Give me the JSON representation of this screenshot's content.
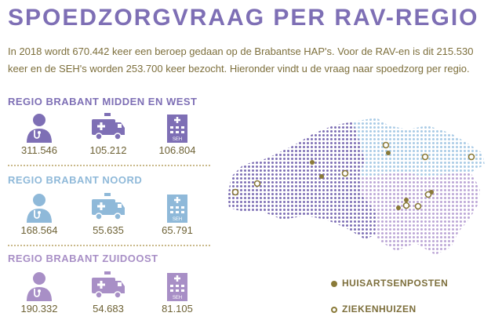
{
  "title": "SPOEDZORGVRAAG PER RAV-REGIO",
  "intro": "In 2018 wordt 670.442 keer een beroep gedaan op de Brabantse HAP's. Voor de RAV-en is dit 215.530 keer en de SEH's worden 253.700 keer bezocht. Hieronder vindt u de vraag naar spoedzorg per regio.",
  "regions": [
    {
      "name": "REGIO BRABANT MIDDEN EN WEST",
      "color": "#7e6fb5",
      "hap": "311.546",
      "rav": "105.212",
      "seh": "106.804"
    },
    {
      "name": "REGIO BRABANT NOORD",
      "color": "#8fb9d9",
      "hap": "168.564",
      "rav": "55.635",
      "seh": "65.791"
    },
    {
      "name": "REGIO BRABANT ZUIDOOST",
      "color": "#a88fc6",
      "hap": "190.332",
      "rav": "54.683",
      "seh": "81.105"
    }
  ],
  "icons": [
    "doctor-icon",
    "ambulance-icon",
    "hospital-icon"
  ],
  "hospital_label": "SEH",
  "legend": {
    "huisartsenposten": "HUISARTSENPOSTEN",
    "ziekenhuizen": "ZIEKENHUIZEN"
  },
  "colors": {
    "title": "#7e6fb5",
    "text": "#7d6f3c",
    "marker": "#8a7a38"
  }
}
